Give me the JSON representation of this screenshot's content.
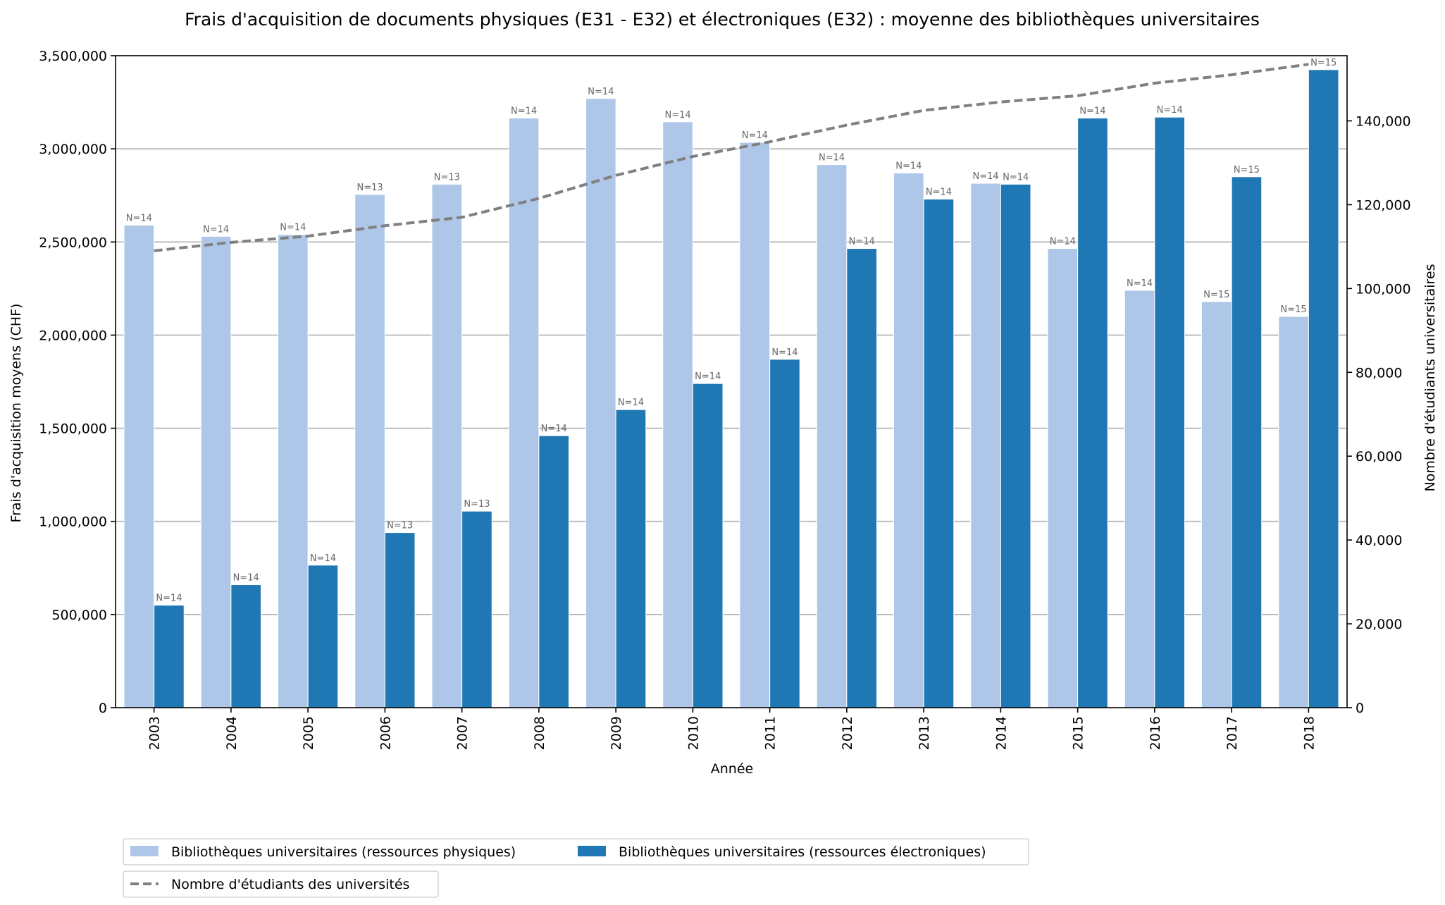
{
  "chart_data": {
    "type": "bar",
    "title": "Frais d'acquisition de documents physiques (E31 - E32) et électroniques (E32) : moyenne des bibliothèques universitaires",
    "xlabel": "Année",
    "ylabel": "Frais d'acquisition moyens (CHF)",
    "y2label": "Nombre d'étudiants universitaires",
    "ylim": [
      0,
      3500000
    ],
    "y2lim": [
      0,
      155555
    ],
    "yticks": [
      "0",
      "500,000",
      "1,000,000",
      "1,500,000",
      "2,000,000",
      "2,500,000",
      "3,000,000",
      "3,500,000"
    ],
    "y2ticks": [
      "0",
      "20,000",
      "40,000",
      "60,000",
      "80,000",
      "100,000",
      "120,000",
      "140,000"
    ],
    "grid": "y-major",
    "legend_placement": "bottom-left, below plot",
    "categories": [
      "2003",
      "2004",
      "2005",
      "2006",
      "2007",
      "2008",
      "2009",
      "2010",
      "2011",
      "2012",
      "2013",
      "2014",
      "2015",
      "2016",
      "2017",
      "2018"
    ],
    "series": [
      {
        "name": "Bibliothèques universitaires (ressources physiques)",
        "kind": "bar",
        "color": "#aec7e8",
        "values": [
          2590000,
          2530000,
          2540000,
          2755000,
          2810000,
          3165000,
          3270000,
          3145000,
          3035000,
          2915000,
          2870000,
          2815000,
          2465000,
          2240000,
          2180000,
          2100000
        ],
        "labels": [
          "N=14",
          "N=14",
          "N=14",
          "N=13",
          "N=13",
          "N=14",
          "N=14",
          "N=14",
          "N=14",
          "N=14",
          "N=14",
          "N=14",
          "N=14",
          "N=14",
          "N=15",
          "N=15"
        ]
      },
      {
        "name": "Bibliothèques universitaires (ressources électroniques)",
        "kind": "bar",
        "color": "#1f77b4",
        "values": [
          550000,
          660000,
          765000,
          940000,
          1055000,
          1460000,
          1600000,
          1740000,
          1870000,
          2465000,
          2730000,
          2810000,
          3165000,
          3170000,
          2850000,
          3425000
        ],
        "labels": [
          "N=14",
          "N=14",
          "N=14",
          "N=13",
          "N=13",
          "N=14",
          "N=14",
          "N=14",
          "N=14",
          "N=14",
          "N=14",
          "N=14",
          "N=14",
          "N=14",
          "N=15",
          "N=15"
        ]
      },
      {
        "name": "Nombre d'étudiants des universités",
        "kind": "line",
        "axis": "right",
        "color": "#808080",
        "values": [
          109000,
          111000,
          112500,
          115000,
          117000,
          121500,
          127000,
          131500,
          135000,
          139000,
          142500,
          144500,
          146000,
          149000,
          151000,
          153500
        ]
      }
    ]
  }
}
